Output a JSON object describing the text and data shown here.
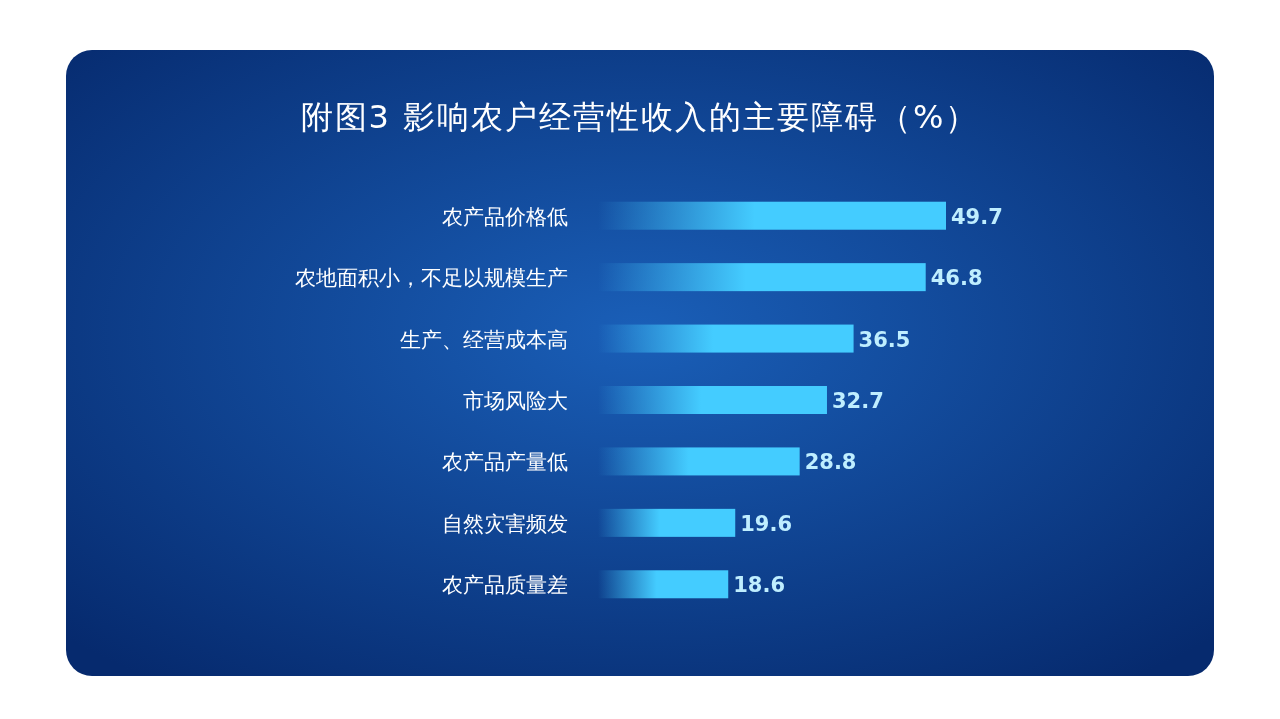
{
  "chart_data": {
    "type": "bar",
    "orientation": "horizontal",
    "title": "附图3 影响农户经营性收入的主要障碍（%）",
    "categories": [
      "农产品价格低",
      "农地面积小，不足以规模生产",
      "生产、经营成本高",
      "市场风险大",
      "农产品产量低",
      "自然灾害频发",
      "农产品质量差"
    ],
    "values": [
      49.7,
      46.8,
      36.5,
      32.7,
      28.8,
      19.6,
      18.6
    ],
    "color": "#44ccff",
    "data_labels": true
  }
}
